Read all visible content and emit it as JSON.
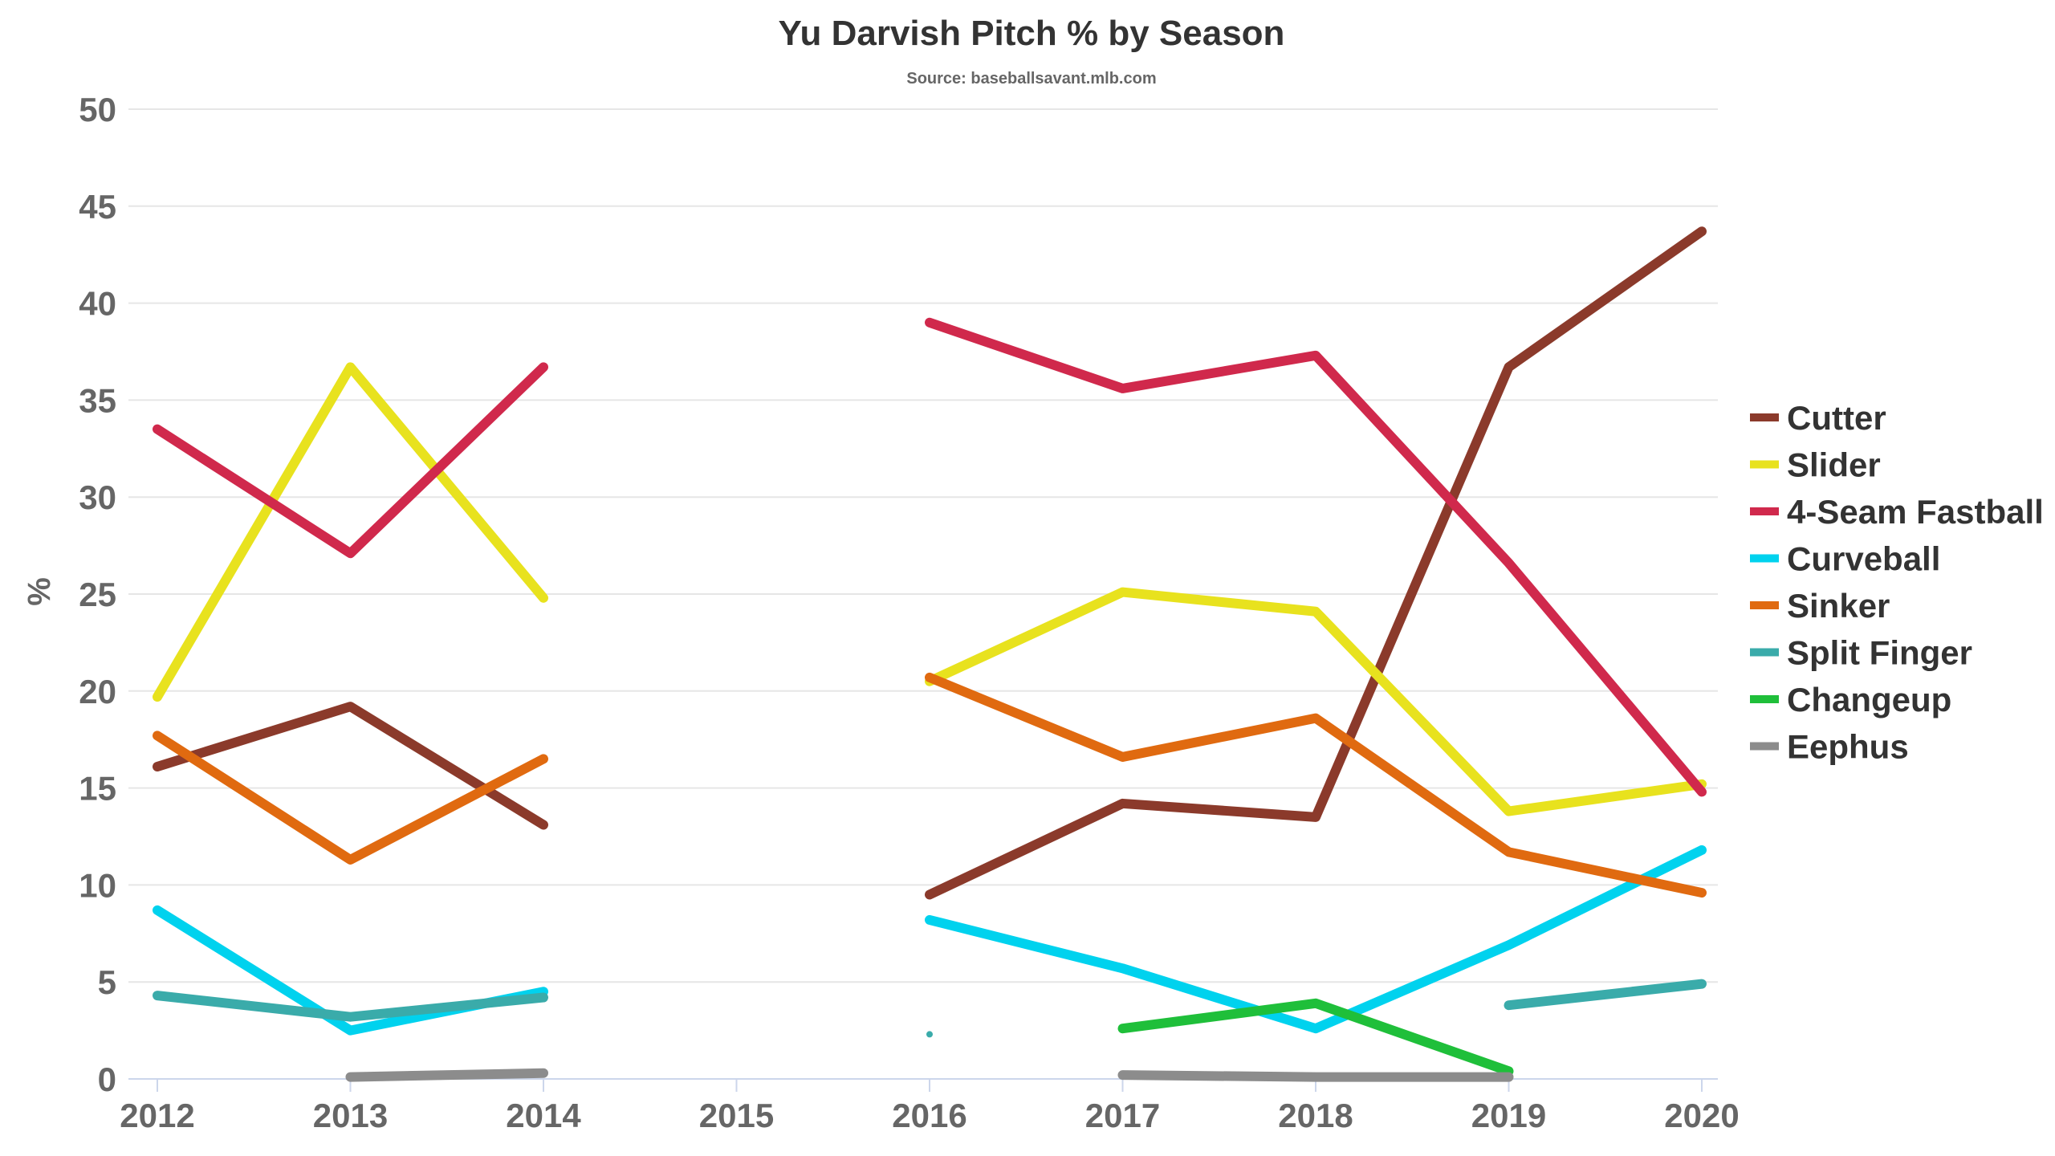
{
  "chart_data": {
    "type": "line",
    "title": "Yu Darvish Pitch % by Season",
    "subtitle": "Source: baseballsavant.mlb.com",
    "xlabel": "",
    "ylabel": "%",
    "ylim": [
      0,
      50
    ],
    "yticks": [
      0,
      5,
      10,
      15,
      20,
      25,
      30,
      35,
      40,
      45,
      50
    ],
    "categories": [
      "2012",
      "2013",
      "2014",
      "2015",
      "2016",
      "2017",
      "2018",
      "2019",
      "2020"
    ],
    "grid": true,
    "legend_position": "right",
    "series": [
      {
        "name": "Cutter",
        "color": "#8B3A2B",
        "values": [
          16.1,
          19.2,
          13.1,
          null,
          9.5,
          14.2,
          13.5,
          36.7,
          43.7
        ]
      },
      {
        "name": "Slider",
        "color": "#E8E21E",
        "values": [
          19.7,
          36.7,
          24.8,
          null,
          20.5,
          25.1,
          24.1,
          13.8,
          15.2
        ]
      },
      {
        "name": "4-Seam Fastball",
        "color": "#D0294C",
        "values": [
          33.5,
          27.1,
          36.7,
          null,
          39.0,
          35.6,
          37.3,
          26.6,
          14.8
        ]
      },
      {
        "name": "Curveball",
        "color": "#00D2EE",
        "values": [
          8.7,
          2.5,
          4.5,
          null,
          8.2,
          5.7,
          2.6,
          6.9,
          11.8
        ]
      },
      {
        "name": "Sinker",
        "color": "#E06A10",
        "values": [
          17.7,
          11.3,
          16.5,
          null,
          20.7,
          16.6,
          18.6,
          11.7,
          9.6
        ]
      },
      {
        "name": "Split Finger",
        "color": "#3AABAA",
        "values": [
          4.3,
          3.2,
          4.2,
          null,
          2.3,
          null,
          null,
          3.8,
          4.9
        ]
      },
      {
        "name": "Changeup",
        "color": "#1FBF3A",
        "values": [
          null,
          null,
          null,
          null,
          null,
          2.6,
          3.9,
          0.4,
          null
        ]
      },
      {
        "name": "Eephus",
        "color": "#8C8C8C",
        "values": [
          null,
          0.1,
          0.3,
          null,
          null,
          0.2,
          0.1,
          0.1,
          null
        ]
      }
    ]
  }
}
